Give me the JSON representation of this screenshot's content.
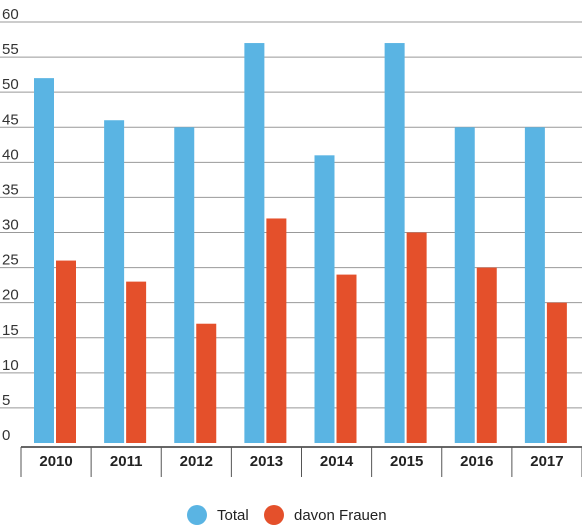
{
  "chart_data": {
    "type": "bar",
    "title": "",
    "xlabel": "",
    "ylabel": "",
    "ylim": [
      0,
      60
    ],
    "yticks": [
      0,
      5,
      10,
      15,
      20,
      25,
      30,
      35,
      40,
      45,
      50,
      55,
      60
    ],
    "grid": true,
    "legend_position": "bottom-center",
    "categories": [
      "2010",
      "2011",
      "2012",
      "2013",
      "2014",
      "2015",
      "2016",
      "2017"
    ],
    "series": [
      {
        "name": "Total",
        "color": "#5ab4e3",
        "values": [
          52,
          46,
          45,
          57,
          41,
          57,
          45,
          45
        ]
      },
      {
        "name": "davon Frauen",
        "color": "#e4502b",
        "values": [
          26,
          23,
          17,
          32,
          24,
          30,
          25,
          20
        ]
      }
    ]
  }
}
